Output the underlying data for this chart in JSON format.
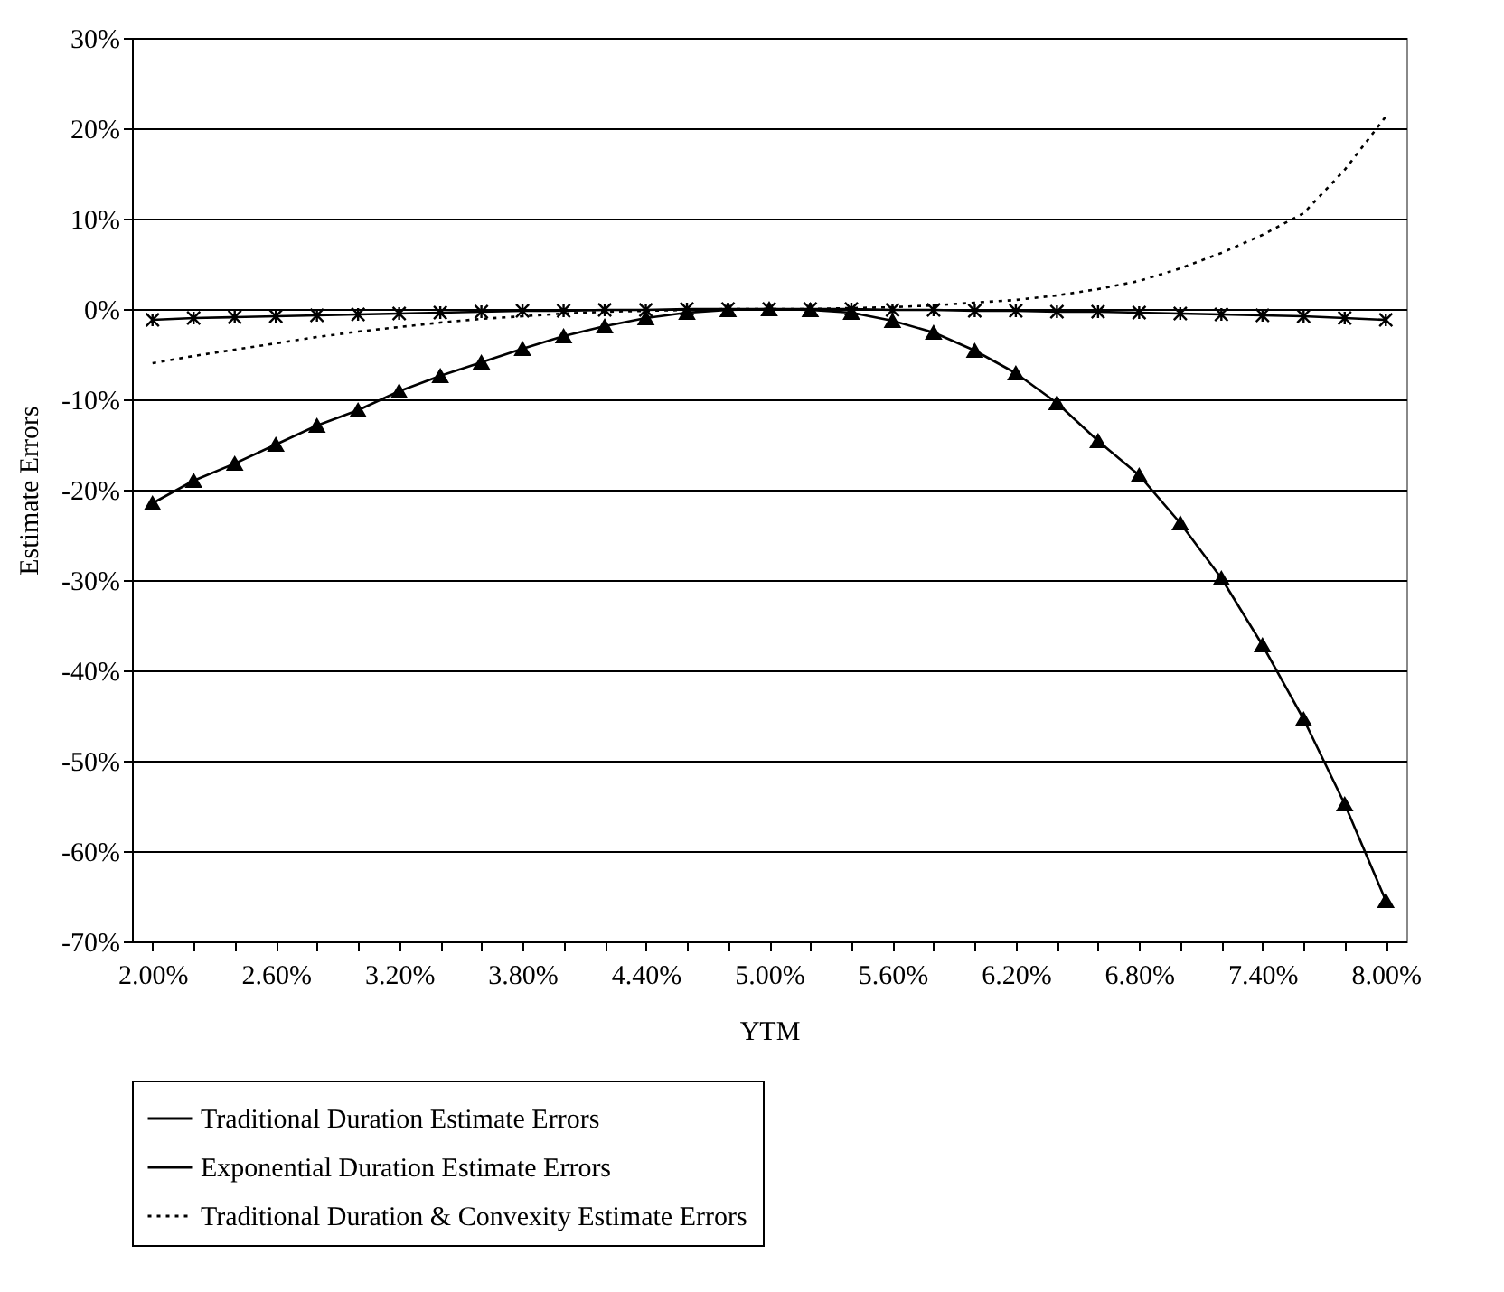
{
  "chart_data": {
    "type": "line",
    "xlabel": "YTM",
    "ylabel": "Estimate Errors",
    "categories": [
      "2.00%",
      null,
      null,
      "2.60%",
      null,
      null,
      "3.20%",
      null,
      null,
      "3.80%",
      null,
      null,
      "4.40%",
      null,
      null,
      "5.00%",
      null,
      null,
      "5.60%",
      null,
      null,
      "6.20%",
      null,
      null,
      "6.80%",
      null,
      null,
      "7.40%",
      null,
      null,
      "8.00%"
    ],
    "series": [
      {
        "name": "Traditional Duration Estimate Errors",
        "color": "#000000",
        "marker": "triangle",
        "line_style": "solid",
        "values": [
          -21.5,
          -19,
          -17.1,
          -15,
          -12.9,
          -11.2,
          -9.1,
          -7.4,
          -5.9,
          -4.4,
          -3,
          -1.9,
          -1,
          -0.4,
          -0.1,
          0,
          -0.1,
          -0.4,
          -1.3,
          -2.6,
          -4.6,
          -7.1,
          -10.4,
          -14.6,
          -18.4,
          -23.7,
          -29.8,
          -37.2,
          -45.4,
          -54.8,
          -65.5
        ]
      },
      {
        "name": "Exponential Duration Estimate Errors",
        "color": "#000000",
        "marker": "cross",
        "line_style": "solid",
        "values": [
          -1.2,
          -1,
          -0.9,
          -0.8,
          -0.7,
          -0.6,
          -0.5,
          -0.4,
          -0.3,
          -0.2,
          -0.2,
          -0.1,
          -0.1,
          0,
          0,
          0,
          0,
          0,
          -0.1,
          -0.1,
          -0.2,
          -0.2,
          -0.3,
          -0.3,
          -0.4,
          -0.5,
          -0.6,
          -0.7,
          -0.8,
          -1,
          -1.2
        ]
      },
      {
        "name": "Traditional Duration & Convexity Estimate Errors",
        "color": "#000000",
        "marker": "none",
        "line_style": "dotted",
        "values": [
          -6,
          -5.2,
          -4.5,
          -3.8,
          -3.1,
          -2.5,
          -2,
          -1.5,
          -1.1,
          -0.8,
          -0.5,
          -0.3,
          -0.2,
          -0.1,
          0,
          0,
          0,
          0.1,
          0.2,
          0.4,
          0.7,
          1,
          1.5,
          2.2,
          3.1,
          4.5,
          6.2,
          8.2,
          10.6,
          15.4,
          21.3
        ]
      }
    ],
    "ylim": [
      -70,
      30
    ],
    "yticks": [
      {
        "value": -70,
        "label": "-70%"
      },
      {
        "value": -60,
        "label": "-60%"
      },
      {
        "value": -50,
        "label": "-50%"
      },
      {
        "value": -40,
        "label": "-40%"
      },
      {
        "value": -30,
        "label": "-30%"
      },
      {
        "value": -20,
        "label": "-20%"
      },
      {
        "value": -10,
        "label": "-10%"
      },
      {
        "value": 0,
        "label": "0%"
      },
      {
        "value": 10,
        "label": "10%"
      },
      {
        "value": 20,
        "label": "20%"
      },
      {
        "value": 30,
        "label": "30%"
      }
    ],
    "grid": "y",
    "legend": "bottom"
  }
}
